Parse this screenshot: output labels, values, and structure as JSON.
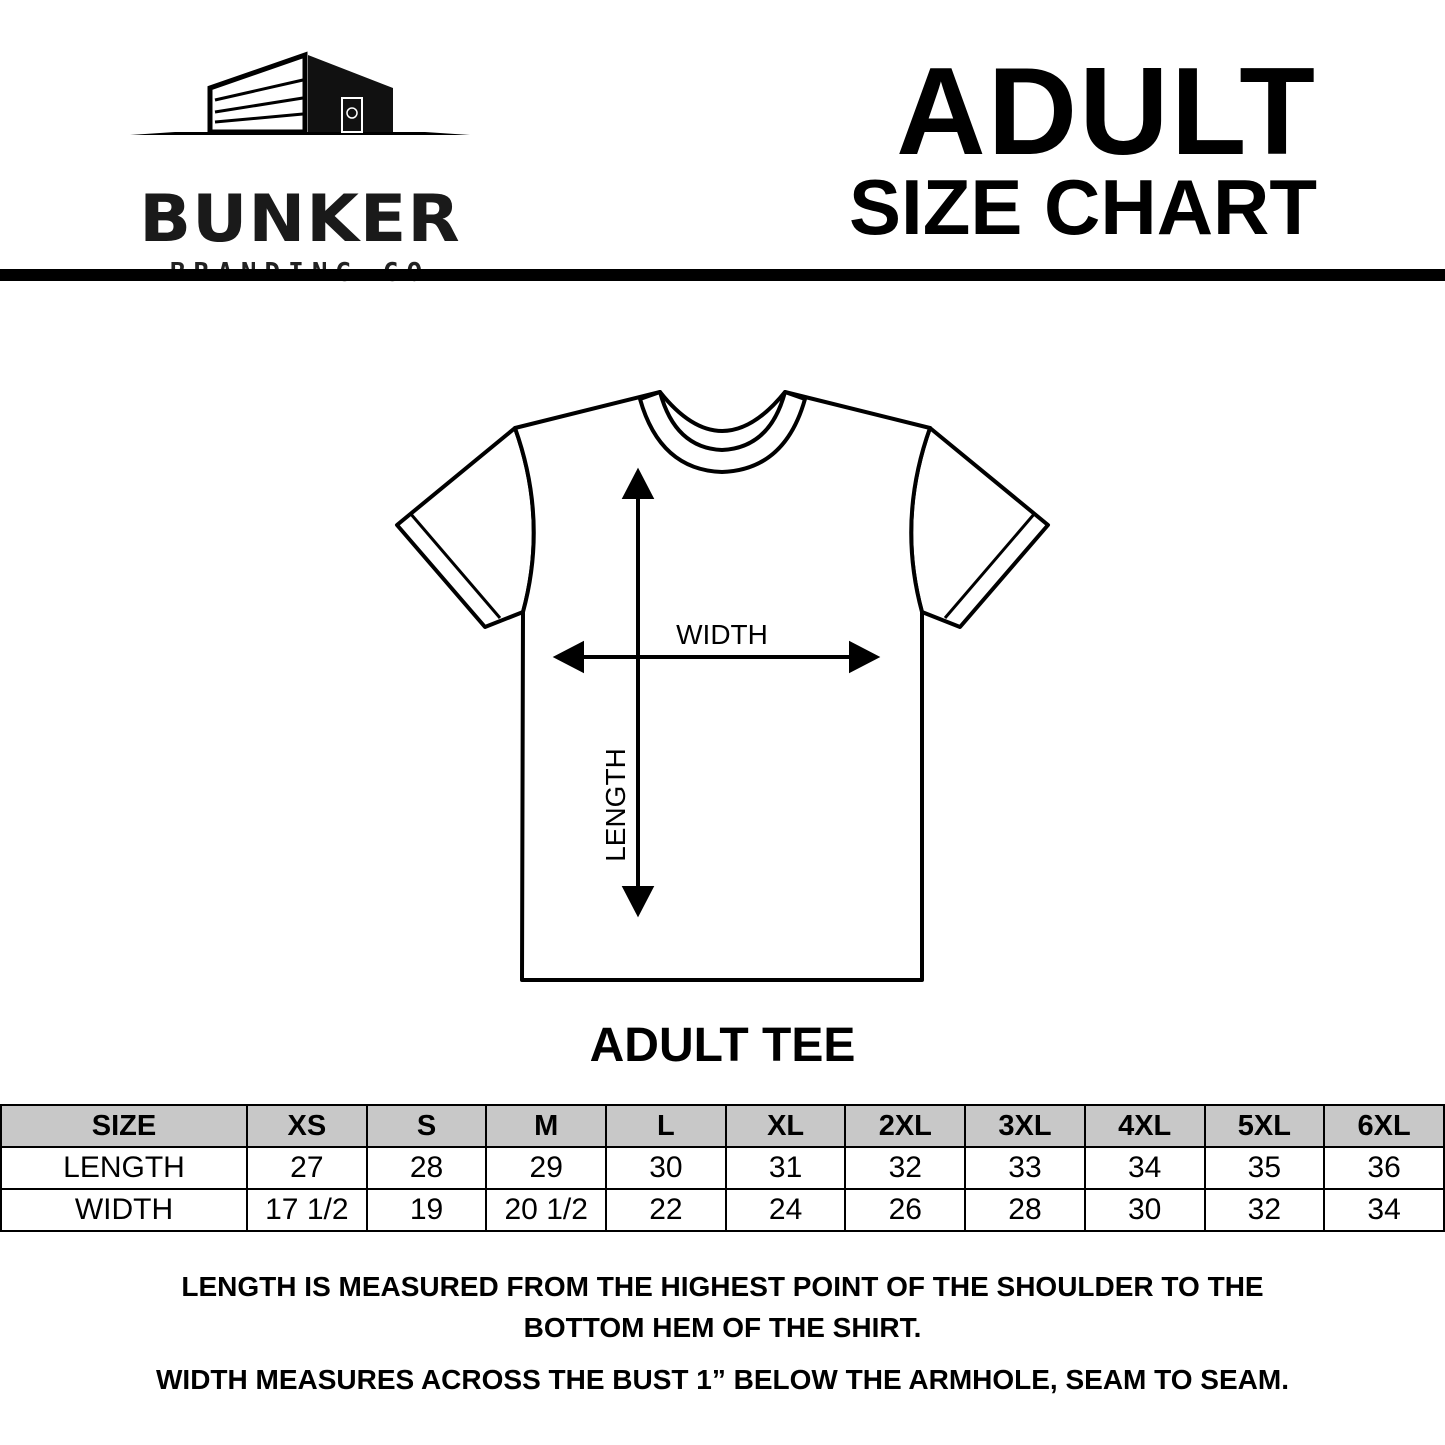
{
  "logo": {
    "name": "BUNKER",
    "tagline": "BRANDING CO"
  },
  "title": {
    "line1": "ADULT",
    "line2": "SIZE CHART"
  },
  "diagram": {
    "width_label": "WIDTH",
    "length_label": "LENGTH",
    "garment_label": "ADULT TEE"
  },
  "table": {
    "header": [
      "SIZE",
      "XS",
      "S",
      "M",
      "L",
      "XL",
      "2XL",
      "3XL",
      "4XL",
      "5XL",
      "6XL"
    ],
    "rows": [
      [
        "LENGTH",
        "27",
        "28",
        "29",
        "30",
        "31",
        "32",
        "33",
        "34",
        "35",
        "36"
      ],
      [
        "WIDTH",
        "17 1/2",
        "19",
        "20 1/2",
        "22",
        "24",
        "26",
        "28",
        "30",
        "32",
        "34"
      ]
    ],
    "header_bg": "#c8c8c8"
  },
  "notes": {
    "length": "LENGTH IS MEASURED FROM THE HIGHEST POINT OF THE SHOULDER TO THE BOTTOM HEM OF THE SHIRT.",
    "width": "WIDTH MEASURES ACROSS THE BUST 1” BELOW THE ARMHOLE, SEAM TO SEAM."
  }
}
